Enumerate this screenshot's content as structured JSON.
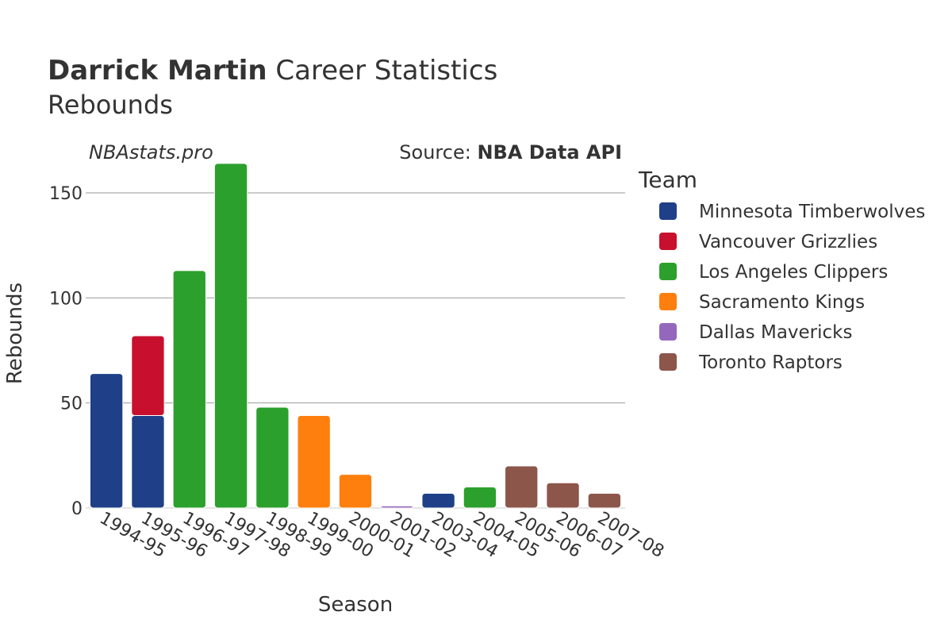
{
  "header": {
    "player_name": "Darrick Martin",
    "title_suffix": " Career Statistics",
    "subtitle": "Rebounds"
  },
  "watermark": "NBAstats.pro",
  "source": {
    "prefix": "Source: ",
    "name": "NBA Data API"
  },
  "legend": {
    "title": "Team"
  },
  "chart_data": {
    "type": "bar",
    "stacked": true,
    "title": "Darrick Martin Career Statistics",
    "subtitle": "Rebounds",
    "xlabel": "Season",
    "ylabel": "Rebounds",
    "ylim": [
      0,
      170
    ],
    "yticks": [
      0,
      50,
      100,
      150
    ],
    "grid": true,
    "legend_position": "right",
    "categories": [
      "1994-95",
      "1995-96",
      "1996-97",
      "1997-98",
      "1998-99",
      "1999-00",
      "2000-01",
      "2001-02",
      "2003-04",
      "2004-05",
      "2005-06",
      "2006-07",
      "2007-08"
    ],
    "series": [
      {
        "name": "Minnesota Timberwolves",
        "color": "#1f4088",
        "values": [
          64,
          44,
          0,
          0,
          0,
          0,
          0,
          0,
          7,
          0,
          0,
          0,
          0
        ]
      },
      {
        "name": "Vancouver Grizzlies",
        "color": "#c8102e",
        "values": [
          0,
          38,
          0,
          0,
          0,
          0,
          0,
          0,
          0,
          0,
          0,
          0,
          0
        ]
      },
      {
        "name": "Los Angeles Clippers",
        "color": "#2ca02c",
        "values": [
          0,
          0,
          113,
          164,
          48,
          0,
          0,
          0,
          0,
          10,
          0,
          0,
          0
        ]
      },
      {
        "name": "Sacramento Kings",
        "color": "#ff7f0e",
        "values": [
          0,
          0,
          0,
          0,
          0,
          44,
          16,
          0,
          0,
          0,
          0,
          0,
          0
        ]
      },
      {
        "name": "Dallas Mavericks",
        "color": "#9467bd",
        "values": [
          0,
          0,
          0,
          0,
          0,
          0,
          0,
          1,
          0,
          0,
          0,
          0,
          0
        ]
      },
      {
        "name": "Toronto Raptors",
        "color": "#8c564b",
        "values": [
          0,
          0,
          0,
          0,
          0,
          0,
          0,
          0,
          0,
          0,
          20,
          12,
          7
        ]
      }
    ]
  }
}
